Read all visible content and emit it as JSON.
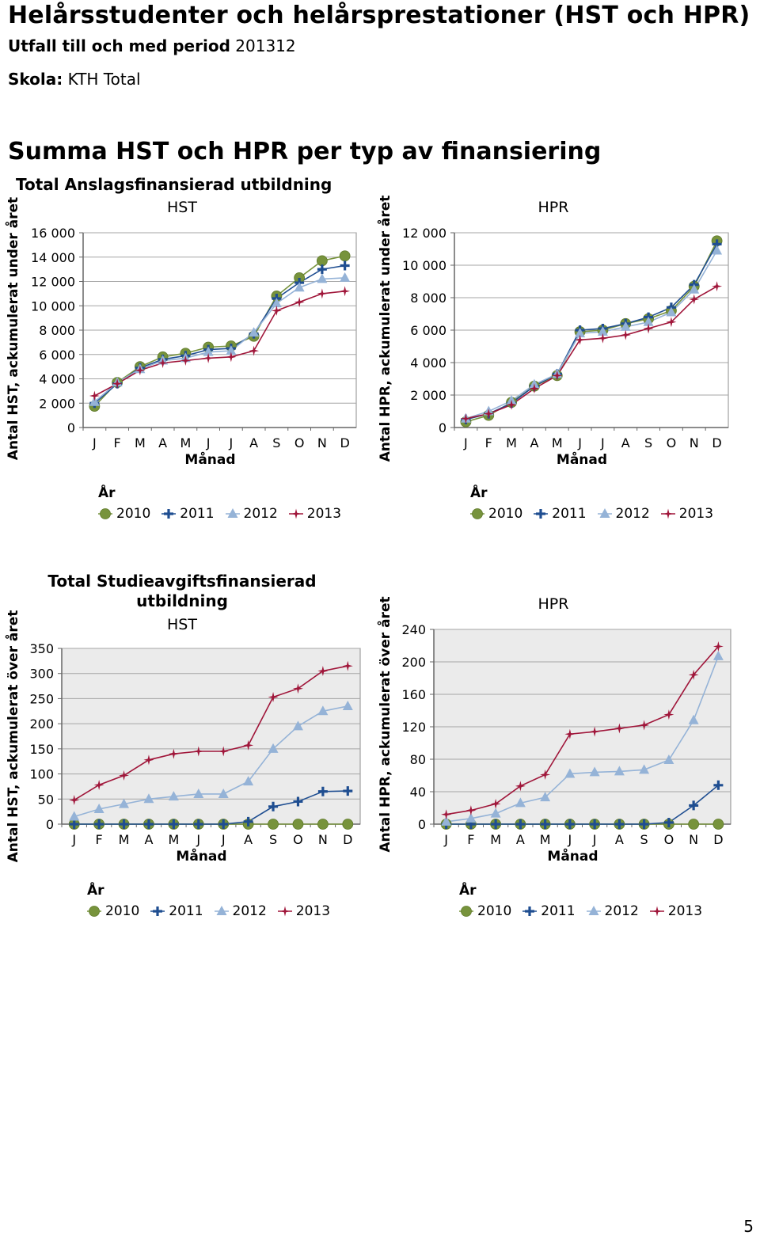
{
  "header": {
    "title": "Helårsstudenter och helårsprestationer (HST och HPR)",
    "period_label": "Utfall till och med period",
    "period_value": "201312",
    "school_label": "Skola:",
    "school_value": "KTH Total",
    "section_title": "Summa HST och HPR per typ av finansiering"
  },
  "sections": {
    "anslag": {
      "title": "Total Anslagsfinansierad utbildning"
    },
    "studieavgift": {
      "title_line1": "Total Studieavgiftsfinansierad",
      "title_line2": "utbildning"
    }
  },
  "legend": {
    "title": "År",
    "items": [
      "2010",
      "2011",
      "2012",
      "2013"
    ]
  },
  "colors": {
    "2010": "#77933c",
    "2011": "#1f4e91",
    "2012": "#95b3d7",
    "2013": "#a0163a",
    "plot_bg_light": "#ffffff",
    "plot_bg_grey": "#ebebeb",
    "grid": "#a6a6a6"
  },
  "page_number": "5",
  "chart_data": [
    {
      "type": "line",
      "title": "HST",
      "ylabel": "Antal HST, ackumulerat under året",
      "xlabel": "Månad",
      "categories": [
        "J",
        "F",
        "M",
        "A",
        "M",
        "J",
        "J",
        "A",
        "S",
        "O",
        "N",
        "D"
      ],
      "ylim": [
        0,
        16000
      ],
      "yticks": [
        0,
        2000,
        4000,
        6000,
        8000,
        10000,
        12000,
        14000,
        16000
      ],
      "ytick_labels": [
        "0",
        "2 000",
        "4 000",
        "6 000",
        "8 000",
        "10 000",
        "12 000",
        "14 000",
        "16 000"
      ],
      "background": "white",
      "series": [
        {
          "name": "2010",
          "values": [
            1750,
            3700,
            5000,
            5800,
            6100,
            6600,
            6700,
            7500,
            10800,
            12300,
            13700,
            14100
          ]
        },
        {
          "name": "2011",
          "values": [
            2000,
            3600,
            4900,
            5600,
            5900,
            6400,
            6500,
            7700,
            10600,
            11900,
            13000,
            13300
          ]
        },
        {
          "name": "2012",
          "values": [
            2100,
            3700,
            4800,
            5500,
            5700,
            6200,
            6300,
            7800,
            10200,
            11500,
            12200,
            12300
          ]
        },
        {
          "name": "2013",
          "values": [
            2600,
            3600,
            4700,
            5300,
            5500,
            5700,
            5800,
            6300,
            9600,
            10300,
            11000,
            11200
          ]
        }
      ]
    },
    {
      "type": "line",
      "title": "HPR",
      "ylabel": "Antal HPR, ackumulerat under året",
      "xlabel": "Månad",
      "categories": [
        "J",
        "F",
        "M",
        "A",
        "M",
        "J",
        "J",
        "A",
        "S",
        "O",
        "N",
        "D"
      ],
      "ylim": [
        0,
        12000
      ],
      "yticks": [
        0,
        2000,
        4000,
        6000,
        8000,
        10000,
        12000
      ],
      "ytick_labels": [
        "0",
        "2 000",
        "4 000",
        "6 000",
        "8 000",
        "10 000",
        "12 000"
      ],
      "background": "white",
      "series": [
        {
          "name": "2010",
          "values": [
            350,
            750,
            1550,
            2550,
            3200,
            5900,
            6000,
            6400,
            6700,
            7200,
            8700,
            11500
          ]
        },
        {
          "name": "2011",
          "values": [
            500,
            850,
            1500,
            2550,
            3300,
            6000,
            6100,
            6400,
            6800,
            7400,
            8800,
            11300
          ]
        },
        {
          "name": "2012",
          "values": [
            550,
            1000,
            1650,
            2650,
            3300,
            5800,
            5900,
            6200,
            6500,
            7100,
            8500,
            10900
          ]
        },
        {
          "name": "2013",
          "values": [
            550,
            850,
            1400,
            2400,
            3200,
            5400,
            5500,
            5700,
            6100,
            6500,
            7900,
            8700
          ]
        }
      ]
    },
    {
      "type": "line",
      "title": "HST",
      "ylabel": "Antal HST, ackumulerat över året",
      "xlabel": "Månad",
      "categories": [
        "J",
        "F",
        "M",
        "A",
        "M",
        "J",
        "J",
        "A",
        "S",
        "O",
        "N",
        "D"
      ],
      "ylim": [
        0,
        350
      ],
      "yticks": [
        0,
        50,
        100,
        150,
        200,
        250,
        300,
        350
      ],
      "ytick_labels": [
        "0",
        "50",
        "100",
        "150",
        "200",
        "250",
        "300",
        "350"
      ],
      "background": "grey",
      "series": [
        {
          "name": "2010",
          "values": [
            0,
            0,
            0,
            0,
            0,
            0,
            0,
            0,
            0,
            0,
            0,
            0
          ]
        },
        {
          "name": "2011",
          "values": [
            0,
            0,
            0,
            0,
            0,
            0,
            0,
            5,
            35,
            45,
            65,
            66
          ]
        },
        {
          "name": "2012",
          "values": [
            15,
            30,
            40,
            50,
            55,
            60,
            60,
            85,
            150,
            195,
            225,
            235
          ]
        },
        {
          "name": "2013",
          "values": [
            48,
            78,
            97,
            128,
            140,
            145,
            145,
            157,
            253,
            270,
            305,
            315
          ]
        }
      ]
    },
    {
      "type": "line",
      "title": "HPR",
      "ylabel": "Antal HPR, ackumulerat över året",
      "xlabel": "Månad",
      "categories": [
        "J",
        "F",
        "M",
        "A",
        "M",
        "J",
        "J",
        "A",
        "S",
        "O",
        "N",
        "D"
      ],
      "ylim": [
        0,
        240
      ],
      "yticks": [
        0,
        40,
        80,
        120,
        160,
        200,
        240
      ],
      "ytick_labels": [
        "0",
        "40",
        "80",
        "120",
        "160",
        "200",
        "240"
      ],
      "background": "grey",
      "series": [
        {
          "name": "2010",
          "values": [
            0,
            0,
            0,
            0,
            0,
            0,
            0,
            0,
            0,
            0,
            0,
            0
          ]
        },
        {
          "name": "2011",
          "values": [
            0,
            0,
            0,
            0,
            0,
            0,
            0,
            0,
            0,
            2,
            23,
            48
          ]
        },
        {
          "name": "2012",
          "values": [
            3,
            7,
            13,
            26,
            33,
            62,
            64,
            65,
            67,
            79,
            128,
            207
          ]
        },
        {
          "name": "2013",
          "values": [
            12,
            17,
            25,
            47,
            61,
            111,
            114,
            118,
            122,
            135,
            184,
            219
          ]
        }
      ]
    }
  ]
}
